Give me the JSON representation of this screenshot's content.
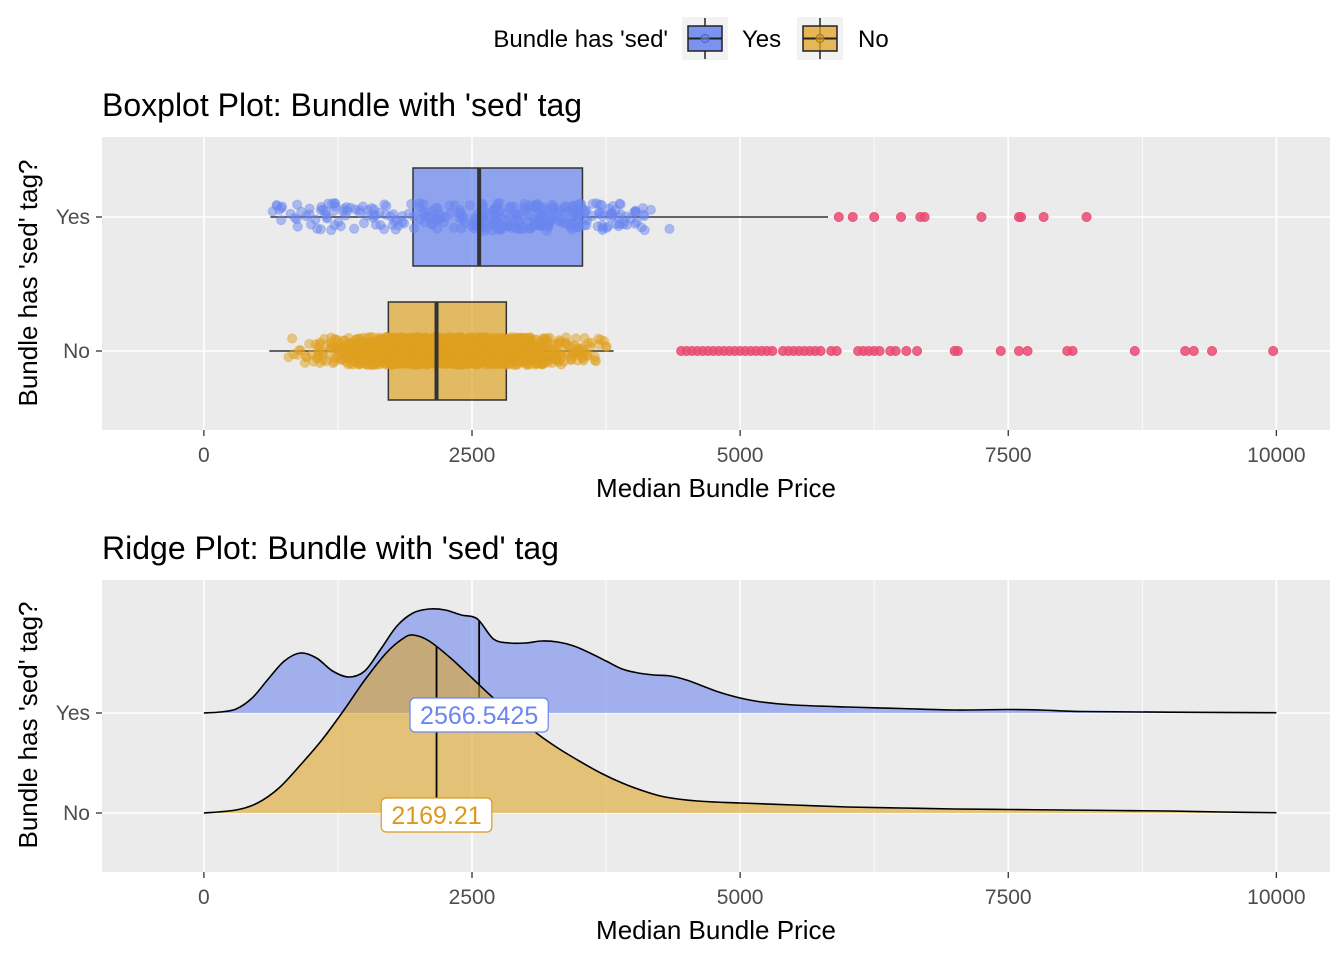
{
  "legend": {
    "title": "Bundle has 'sed'",
    "entries": [
      {
        "label": "Yes",
        "color": "#7b93ef"
      },
      {
        "label": "No",
        "color": "#e1a323"
      }
    ]
  },
  "colors": {
    "yes_fill": "#6f89ef",
    "yes_point": "#6a86f0",
    "no_fill": "#dea52a",
    "no_point": "#e0a020",
    "outlier": "#ea4a72",
    "panel": "#ebebeb",
    "grid": "#ffffff"
  },
  "chart_data": [
    {
      "type": "boxplot",
      "title": "Boxplot Plot: Bundle with 'sed' tag",
      "xlabel": "Median Bundle Price",
      "ylabel": "Bundle has 'sed' tag?",
      "xlim": [
        -950,
        10500
      ],
      "x_ticks": [
        0,
        2500,
        5000,
        7500,
        10000
      ],
      "x_tick_labels": [
        "0",
        "2500",
        "5000",
        "7500",
        "10000"
      ],
      "categories": [
        "Yes",
        "No"
      ],
      "grid": true,
      "series": [
        {
          "name": "Yes",
          "min": 620,
          "q1": 1950,
          "median": 2566.5425,
          "q3": 3530,
          "whisker_high": 5820,
          "points_range": [
            620,
            4900
          ],
          "outliers": [
            5920,
            6050,
            6250,
            6500,
            6680,
            6720,
            7250,
            7600,
            7620,
            7830,
            8230
          ]
        },
        {
          "name": "No",
          "min": 610,
          "q1": 1720,
          "median": 2169.21,
          "q3": 2820,
          "whisker_high": 3820,
          "points_range": [
            610,
            3820
          ],
          "outliers": [
            4450,
            4500,
            4550,
            4600,
            4650,
            4700,
            4750,
            4800,
            4850,
            4900,
            4950,
            5000,
            5050,
            5100,
            5150,
            5200,
            5250,
            5300,
            5400,
            5450,
            5500,
            5550,
            5600,
            5650,
            5700,
            5750,
            5850,
            5900,
            6100,
            6150,
            6200,
            6250,
            6300,
            6400,
            6450,
            6550,
            6650,
            7000,
            7030,
            7430,
            7600,
            7680,
            8050,
            8100,
            8680,
            9150,
            9230,
            9400,
            9970
          ]
        }
      ]
    },
    {
      "type": "ridgeline",
      "title": "Ridge Plot: Bundle with 'sed' tag",
      "xlabel": "Median Bundle Price",
      "ylabel": "Bundle has 'sed' tag?",
      "xlim": [
        -950,
        10500
      ],
      "x_ticks": [
        0,
        2500,
        5000,
        7500,
        10000
      ],
      "x_tick_labels": [
        "0",
        "2500",
        "5000",
        "7500",
        "10000"
      ],
      "categories": [
        "Yes",
        "No"
      ],
      "grid": true,
      "series": [
        {
          "name": "Yes",
          "median": 2566.5425,
          "median_label": "2566.5425",
          "density": [
            [
              0,
              0.0
            ],
            [
              150,
              0.01
            ],
            [
              300,
              0.04
            ],
            [
              450,
              0.15
            ],
            [
              600,
              0.34
            ],
            [
              750,
              0.52
            ],
            [
              900,
              0.6
            ],
            [
              1050,
              0.55
            ],
            [
              1200,
              0.42
            ],
            [
              1350,
              0.36
            ],
            [
              1500,
              0.42
            ],
            [
              1650,
              0.64
            ],
            [
              1800,
              0.87
            ],
            [
              1950,
              1.0
            ],
            [
              2100,
              1.04
            ],
            [
              2250,
              1.03
            ],
            [
              2400,
              0.98
            ],
            [
              2550,
              0.94
            ],
            [
              2700,
              0.74
            ],
            [
              2850,
              0.7
            ],
            [
              3000,
              0.7
            ],
            [
              3150,
              0.72
            ],
            [
              3300,
              0.71
            ],
            [
              3450,
              0.67
            ],
            [
              3600,
              0.6
            ],
            [
              3750,
              0.52
            ],
            [
              3900,
              0.44
            ],
            [
              4050,
              0.4
            ],
            [
              4200,
              0.38
            ],
            [
              4350,
              0.37
            ],
            [
              4500,
              0.33
            ],
            [
              4650,
              0.27
            ],
            [
              4800,
              0.21
            ],
            [
              5000,
              0.15
            ],
            [
              5200,
              0.11
            ],
            [
              5500,
              0.08
            ],
            [
              6000,
              0.06
            ],
            [
              6500,
              0.045
            ],
            [
              7000,
              0.03
            ],
            [
              7500,
              0.035
            ],
            [
              7800,
              0.03
            ],
            [
              8200,
              0.015
            ],
            [
              9000,
              0.008
            ],
            [
              10000,
              0.003
            ]
          ]
        },
        {
          "name": "No",
          "median": 2169.21,
          "median_label": "2169.21",
          "density": [
            [
              0,
              0.0
            ],
            [
              300,
              0.03
            ],
            [
              500,
              0.1
            ],
            [
              700,
              0.25
            ],
            [
              900,
              0.48
            ],
            [
              1100,
              0.73
            ],
            [
              1300,
              1.02
            ],
            [
              1500,
              1.33
            ],
            [
              1700,
              1.6
            ],
            [
              1850,
              1.74
            ],
            [
              1950,
              1.78
            ],
            [
              2100,
              1.72
            ],
            [
              2300,
              1.55
            ],
            [
              2500,
              1.35
            ],
            [
              2700,
              1.15
            ],
            [
              2900,
              0.98
            ],
            [
              3100,
              0.8
            ],
            [
              3300,
              0.65
            ],
            [
              3500,
              0.52
            ],
            [
              3700,
              0.4
            ],
            [
              3900,
              0.3
            ],
            [
              4100,
              0.22
            ],
            [
              4300,
              0.16
            ],
            [
              4600,
              0.12
            ],
            [
              5000,
              0.1
            ],
            [
              5500,
              0.08
            ],
            [
              6000,
              0.06
            ],
            [
              6500,
              0.05
            ],
            [
              7000,
              0.04
            ],
            [
              7500,
              0.035
            ],
            [
              8000,
              0.03
            ],
            [
              8500,
              0.025
            ],
            [
              9000,
              0.02
            ],
            [
              9500,
              0.01
            ],
            [
              10000,
              0.003
            ]
          ]
        }
      ]
    }
  ]
}
